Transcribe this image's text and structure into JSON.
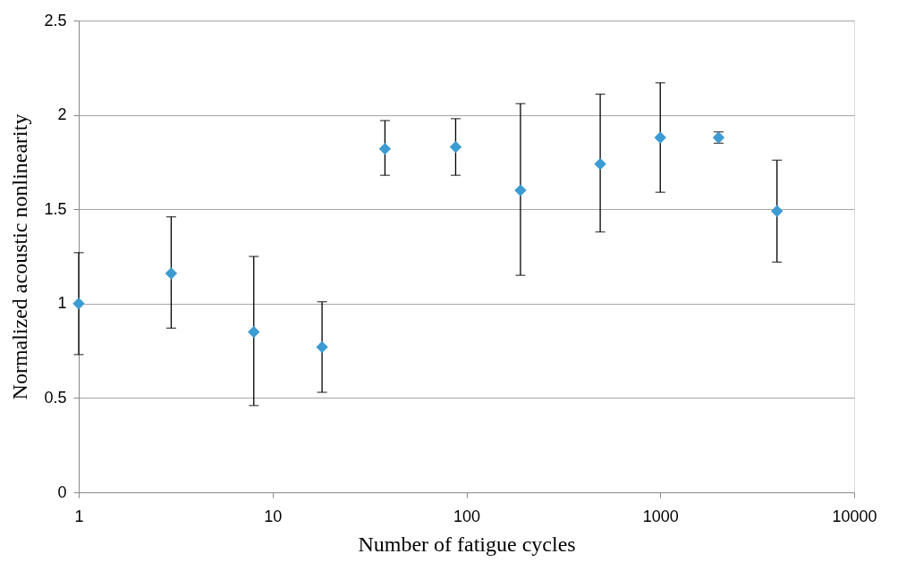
{
  "chart_data": {
    "type": "scatter",
    "xlabel": "Number of fatigue cycles",
    "ylabel": "Normalized acoustic nonlinearity",
    "x": [
      1,
      3,
      8,
      18,
      38,
      88,
      190,
      490,
      1000,
      2000,
      4000
    ],
    "values": [
      1.0,
      1.16,
      0.85,
      0.77,
      1.82,
      1.83,
      1.6,
      1.74,
      1.88,
      1.88,
      1.49
    ],
    "errors": [
      [
        0.73,
        1.27
      ],
      [
        0.87,
        1.46
      ],
      [
        0.46,
        1.25
      ],
      [
        0.53,
        1.01
      ],
      [
        1.68,
        1.97
      ],
      [
        1.68,
        1.98
      ],
      [
        1.15,
        2.06
      ],
      [
        1.38,
        2.11
      ],
      [
        1.59,
        2.17
      ],
      [
        1.85,
        1.91
      ],
      [
        1.22,
        1.76
      ]
    ],
    "color": "#3c9bd3",
    "marker": "diamond",
    "log": "x",
    "grid": "y",
    "xlim": [
      1,
      10000
    ],
    "xticks": [
      1,
      10,
      100,
      1000,
      10000
    ],
    "ylim": [
      0,
      2.5
    ],
    "yticks": [
      0,
      0.5,
      1,
      1.5,
      2,
      2.5
    ]
  }
}
